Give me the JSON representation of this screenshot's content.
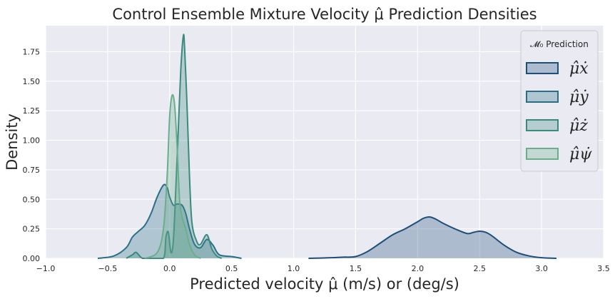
{
  "chart_data": {
    "type": "area",
    "title": "Control Ensemble Mixture Velocity μ̂ Prediction Densities",
    "xlabel": "Predicted velocity μ̂ (m/s) or (deg/s)",
    "ylabel": "Density",
    "xlim": [
      -1.0,
      3.5
    ],
    "ylim": [
      0,
      1.97
    ],
    "xticks": [
      -1.0,
      -0.5,
      0.0,
      0.5,
      1.0,
      1.5,
      2.0,
      2.5,
      3.0,
      3.5
    ],
    "xtick_labels": [
      "−1.0",
      "−0.5",
      "0.0",
      "0.5",
      "1.0",
      "1.5",
      "2.0",
      "2.5",
      "3.0",
      "3.5"
    ],
    "yticks": [
      0.0,
      0.25,
      0.5,
      0.75,
      1.0,
      1.25,
      1.5,
      1.75
    ],
    "ytick_labels": [
      "0.00",
      "0.25",
      "0.50",
      "0.75",
      "1.00",
      "1.25",
      "1.50",
      "1.75"
    ],
    "grid": true,
    "legend_position": "top-right",
    "legend_title": "𝓜₀ Prediction",
    "series": [
      {
        "name": "μ̂ẋ",
        "color": "#1f4e79",
        "x": [
          1.12,
          1.3,
          1.4,
          1.5,
          1.6,
          1.7,
          1.8,
          1.9,
          2.0,
          2.05,
          2.1,
          2.15,
          2.2,
          2.3,
          2.4,
          2.45,
          2.5,
          2.55,
          2.6,
          2.7,
          2.8,
          2.9,
          3.0,
          3.12
        ],
        "y": [
          0.0,
          0.005,
          0.01,
          0.015,
          0.06,
          0.13,
          0.2,
          0.25,
          0.31,
          0.34,
          0.35,
          0.33,
          0.3,
          0.25,
          0.21,
          0.22,
          0.23,
          0.22,
          0.19,
          0.11,
          0.05,
          0.02,
          0.005,
          0.0
        ]
      },
      {
        "name": "μ̂ẏ",
        "color": "#2a6f87",
        "x": [
          -0.58,
          -0.45,
          -0.35,
          -0.3,
          -0.25,
          -0.2,
          -0.15,
          -0.1,
          -0.05,
          -0.02,
          0.0,
          0.03,
          0.06,
          0.1,
          0.13,
          0.16,
          0.2,
          0.25,
          0.3,
          0.35,
          0.4,
          0.5,
          0.58
        ],
        "y": [
          0.0,
          0.02,
          0.09,
          0.18,
          0.23,
          0.28,
          0.38,
          0.52,
          0.62,
          0.6,
          0.52,
          0.45,
          0.46,
          0.45,
          0.38,
          0.25,
          0.12,
          0.09,
          0.16,
          0.11,
          0.03,
          0.015,
          0.0
        ]
      },
      {
        "name": "μ̂ż",
        "color": "#3a8a7e",
        "x": [
          -0.35,
          -0.3,
          -0.27,
          -0.22,
          -0.15,
          -0.05,
          -0.03,
          -0.01,
          0.01,
          0.03,
          0.05,
          0.07,
          0.09,
          0.11,
          0.12,
          0.14,
          0.16,
          0.18,
          0.22,
          0.25,
          0.3,
          0.34,
          0.38,
          0.42
        ],
        "y": [
          0.0,
          0.03,
          0.05,
          0.0,
          0.0,
          0.0,
          0.18,
          0.22,
          0.05,
          0.15,
          0.6,
          1.1,
          1.6,
          1.88,
          1.8,
          1.3,
          0.7,
          0.3,
          0.14,
          0.12,
          0.2,
          0.08,
          0.02,
          0.0
        ]
      },
      {
        "name": "μ̂ψ̇",
        "color": "#6aae8c",
        "x": [
          -0.2,
          -0.1,
          -0.05,
          -0.02,
          0.0,
          0.02,
          0.04,
          0.06,
          0.08,
          0.1,
          0.13,
          0.16,
          0.2,
          0.25
        ],
        "y": [
          0.0,
          0.05,
          0.25,
          0.7,
          1.2,
          1.38,
          1.3,
          0.95,
          0.5,
          0.35,
          0.25,
          0.12,
          0.03,
          0.0
        ]
      }
    ]
  }
}
